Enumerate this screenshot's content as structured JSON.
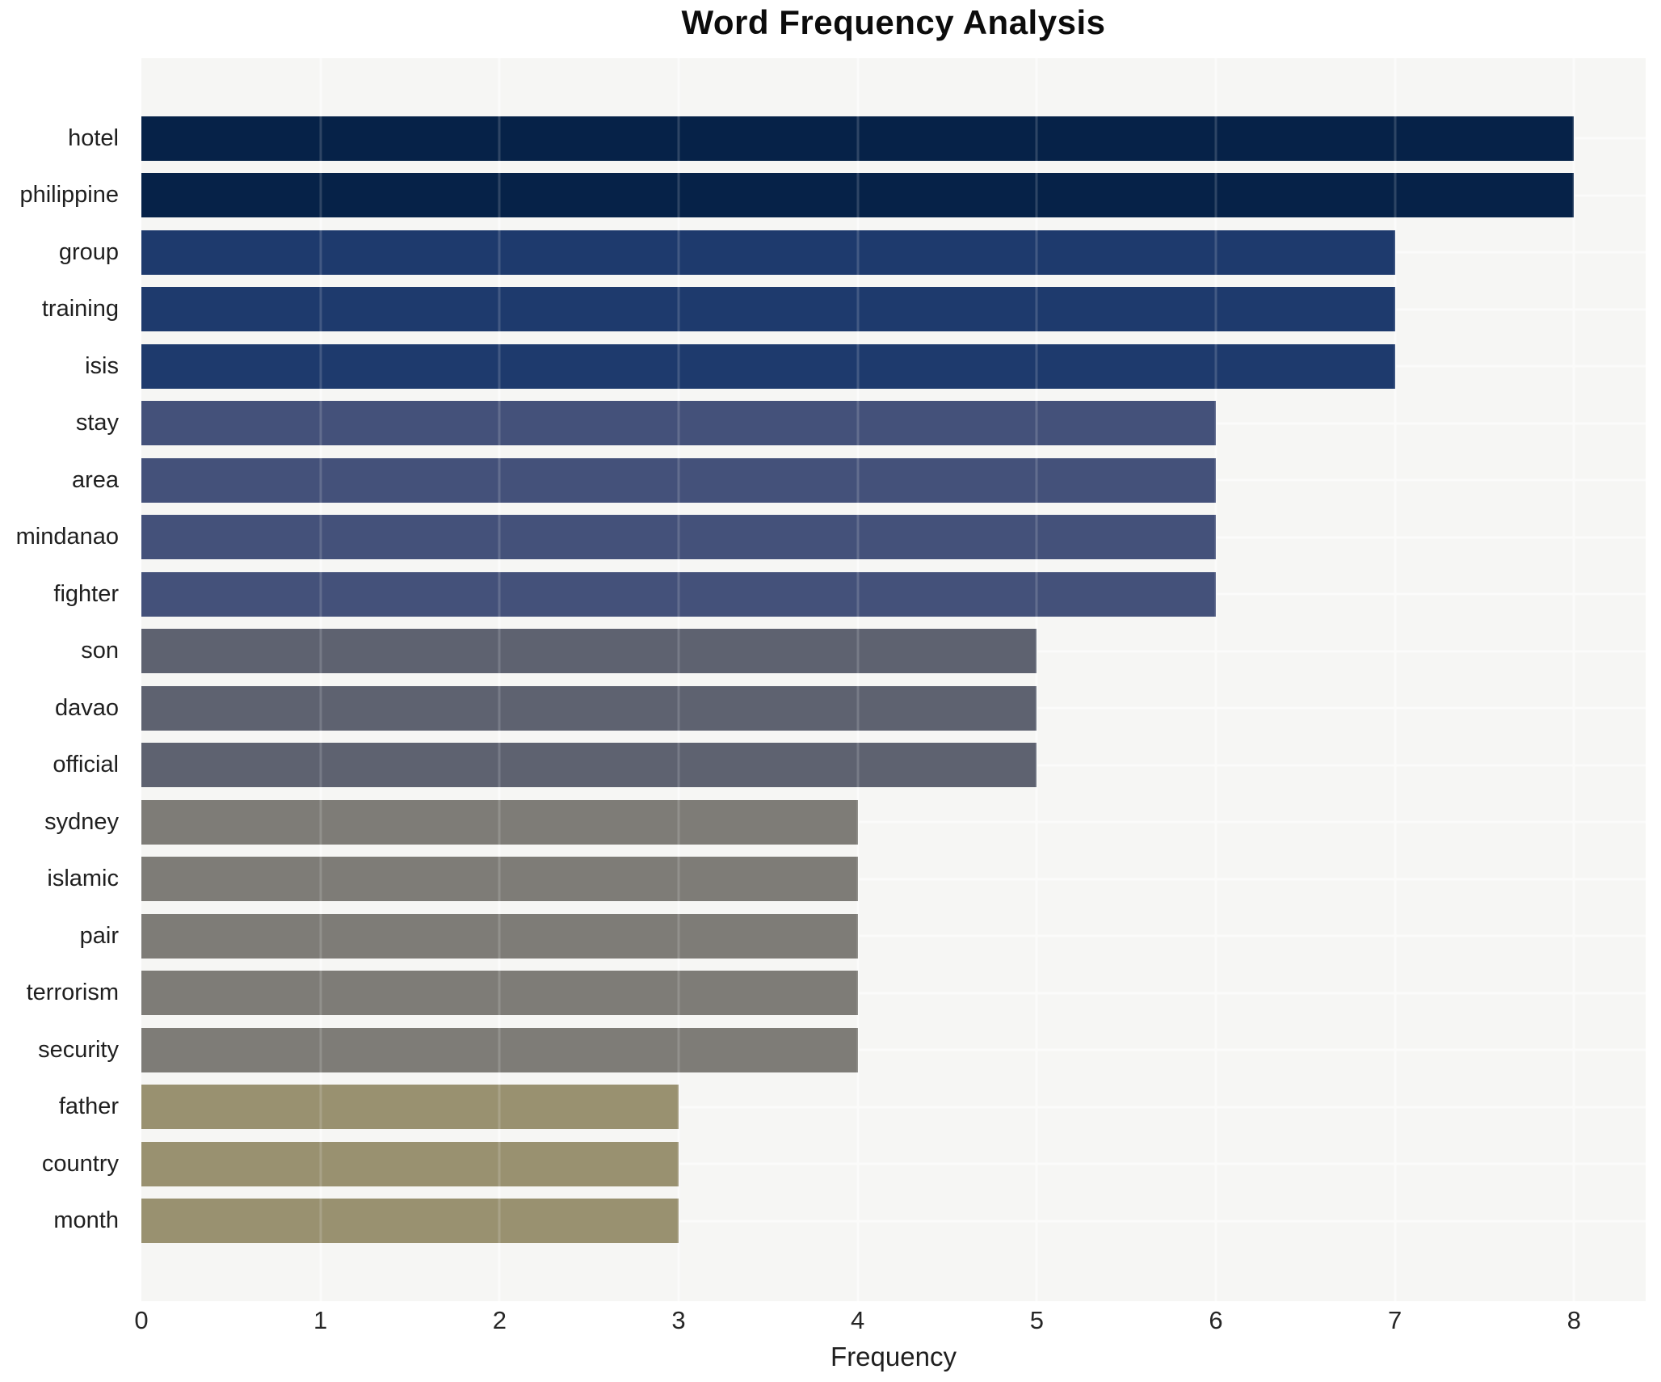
{
  "chart_data": {
    "type": "bar",
    "orientation": "horizontal",
    "title": "Word Frequency Analysis",
    "xlabel": "Frequency",
    "ylabel": "",
    "xlim": [
      0,
      8.4
    ],
    "xticks": [
      0,
      1,
      2,
      3,
      4,
      5,
      6,
      7,
      8
    ],
    "grid": true,
    "legend": false,
    "categories": [
      "hotel",
      "philippine",
      "group",
      "training",
      "isis",
      "stay",
      "area",
      "mindanao",
      "fighter",
      "son",
      "davao",
      "official",
      "sydney",
      "islamic",
      "pair",
      "terrorism",
      "security",
      "father",
      "country",
      "month"
    ],
    "values": [
      8,
      8,
      7,
      7,
      7,
      6,
      6,
      6,
      6,
      5,
      5,
      5,
      4,
      4,
      4,
      4,
      4,
      3,
      3,
      3
    ],
    "bar_colors": [
      "#062248",
      "#062248",
      "#1e3a6d",
      "#1e3a6d",
      "#1e3a6d",
      "#44517a",
      "#44517a",
      "#44517a",
      "#44517a",
      "#5e6270",
      "#5e6270",
      "#5e6270",
      "#7e7c77",
      "#7e7c77",
      "#7e7c77",
      "#7e7c77",
      "#7e7c77",
      "#999170",
      "#999170",
      "#999170"
    ]
  },
  "style": {
    "plot_background": "#f6f6f4",
    "grid_color": "#fbfbfa",
    "title_color": "#0c0c0c",
    "tick_color": "#262626"
  }
}
